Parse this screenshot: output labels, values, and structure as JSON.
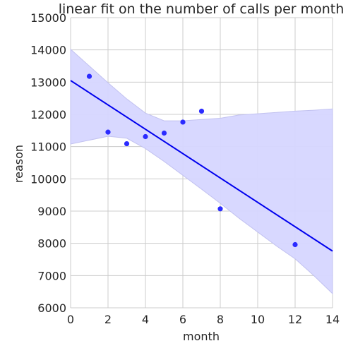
{
  "chart_data": {
    "type": "scatter",
    "title": "linear fit on the number of calls per month",
    "xlabel": "month",
    "ylabel": "reason",
    "xlim": [
      0,
      14
    ],
    "ylim": [
      6000,
      15000
    ],
    "x_ticks": [
      "0",
      "2",
      "4",
      "6",
      "8",
      "10",
      "12",
      "14"
    ],
    "y_ticks": [
      "6000",
      "7000",
      "8000",
      "9000",
      "10000",
      "11000",
      "12000",
      "13000",
      "14000",
      "15000"
    ],
    "grid": true,
    "colors": {
      "points": "#2b2bff",
      "line": "#0000ee",
      "band": "#d6d6ff",
      "band_edge": "#c2c2f0",
      "grid": "#cccccc"
    },
    "series": [
      {
        "points": [
          {
            "x": 1,
            "y": 13180
          },
          {
            "x": 2,
            "y": 11450
          },
          {
            "x": 3,
            "y": 11090
          },
          {
            "x": 4,
            "y": 11310
          },
          {
            "x": 5,
            "y": 11420
          },
          {
            "x": 6,
            "y": 11760
          },
          {
            "x": 7,
            "y": 12100
          },
          {
            "x": 8,
            "y": 9070
          },
          {
            "x": 12,
            "y": 7960
          }
        ]
      }
    ],
    "fit_line": {
      "x": [
        0,
        14
      ],
      "y": [
        13050,
        7760
      ]
    },
    "confidence_band": {
      "x": [
        0,
        1,
        2,
        3,
        4,
        5,
        6,
        7,
        8,
        9,
        10,
        11,
        12,
        13,
        14
      ],
      "upper": [
        14020,
        13500,
        12980,
        12480,
        12040,
        11800,
        11800,
        11840,
        11880,
        11980,
        12020,
        12060,
        12100,
        12130,
        12170
      ],
      "lower": [
        11080,
        11200,
        11320,
        11260,
        10940,
        10540,
        10110,
        9680,
        9240,
        8780,
        8350,
        7920,
        7520,
        7000,
        6440
      ]
    }
  }
}
